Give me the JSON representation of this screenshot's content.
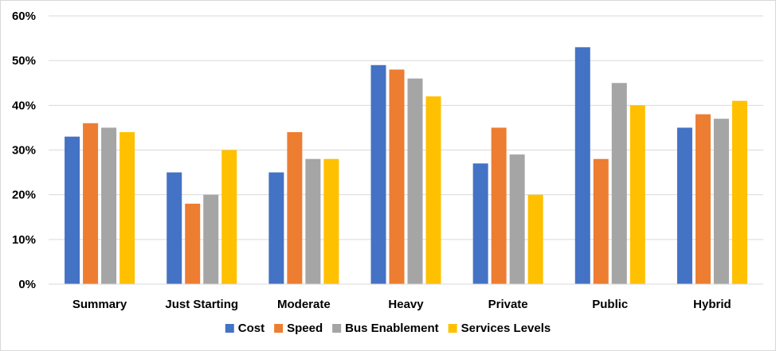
{
  "chart_data": {
    "type": "bar",
    "categories": [
      "Summary",
      "Just Starting",
      "Moderate",
      "Heavy",
      "Private",
      "Public",
      "Hybrid"
    ],
    "series": [
      {
        "name": "Cost",
        "color": "#4472C4",
        "values": [
          33,
          25,
          25,
          49,
          27,
          53,
          35
        ]
      },
      {
        "name": "Speed",
        "color": "#ED7D31",
        "values": [
          36,
          18,
          34,
          48,
          35,
          28,
          38
        ]
      },
      {
        "name": "Bus Enablement",
        "color": "#A5A5A5",
        "values": [
          35,
          20,
          28,
          46,
          29,
          45,
          37
        ]
      },
      {
        "name": "Services Levels",
        "color": "#FFC000",
        "values": [
          34,
          30,
          28,
          42,
          20,
          40,
          41
        ]
      }
    ],
    "title": "",
    "xlabel": "",
    "ylabel": "",
    "ylim": [
      0,
      60
    ],
    "yticks": [
      0,
      10,
      20,
      30,
      40,
      50,
      60
    ],
    "ytick_labels": [
      "0%",
      "10%",
      "20%",
      "30%",
      "40%",
      "50%",
      "60%"
    ],
    "grid": true,
    "gridline_color": "#d9d9d9",
    "legend_position": "bottom"
  }
}
